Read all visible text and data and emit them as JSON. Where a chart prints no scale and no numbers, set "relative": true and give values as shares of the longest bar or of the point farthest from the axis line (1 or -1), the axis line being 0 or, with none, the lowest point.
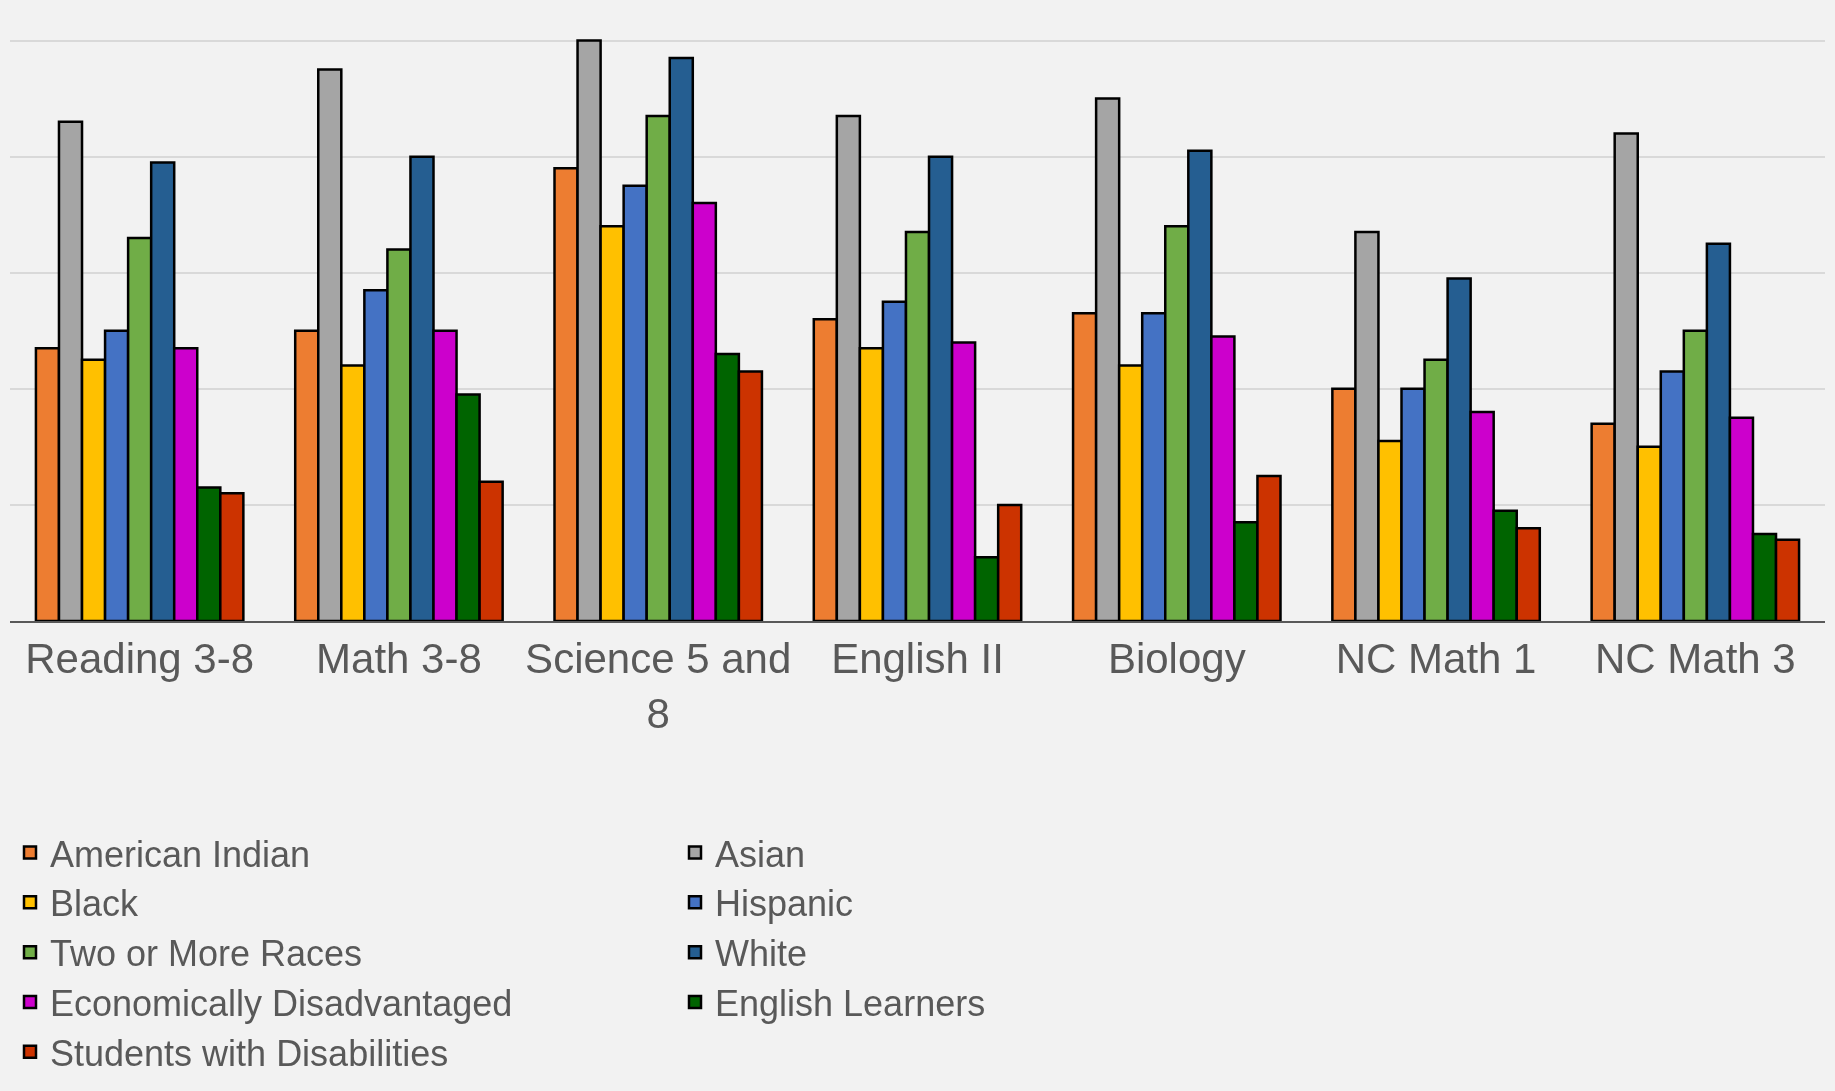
{
  "chart_data": {
    "type": "bar",
    "relative": true,
    "grid": "y",
    "legend": "bottom",
    "categories": [
      "Reading 3-8",
      "Math 3-8",
      "Science 5 and 8",
      "English II",
      "Biology",
      "NC Math 1",
      "NC Math 3"
    ],
    "series": [
      {
        "name": "American Indian",
        "color": "#ed7d31",
        "values": [
          0.47,
          0.5,
          0.78,
          0.52,
          0.53,
          0.4,
          0.34
        ]
      },
      {
        "name": "Asian",
        "color": "#a5a5a5",
        "values": [
          0.86,
          0.95,
          1.0,
          0.87,
          0.9,
          0.67,
          0.84
        ]
      },
      {
        "name": "Black",
        "color": "#ffc000",
        "values": [
          0.45,
          0.44,
          0.68,
          0.47,
          0.44,
          0.31,
          0.3
        ]
      },
      {
        "name": "Hispanic",
        "color": "#4472c4",
        "values": [
          0.5,
          0.57,
          0.75,
          0.55,
          0.53,
          0.4,
          0.43
        ]
      },
      {
        "name": "Two or More Races",
        "color": "#70ad47",
        "values": [
          0.66,
          0.64,
          0.87,
          0.67,
          0.68,
          0.45,
          0.5
        ]
      },
      {
        "name": "White",
        "color": "#255e91",
        "values": [
          0.79,
          0.8,
          0.97,
          0.8,
          0.81,
          0.59,
          0.65
        ]
      },
      {
        "name": "Economically Disadvantaged",
        "color": "#cc00cc",
        "values": [
          0.47,
          0.5,
          0.72,
          0.48,
          0.49,
          0.36,
          0.35
        ]
      },
      {
        "name": "English Learners",
        "color": "#006400",
        "values": [
          0.23,
          0.39,
          0.46,
          0.11,
          0.17,
          0.19,
          0.15
        ]
      },
      {
        "name": "Students with Disabilities",
        "color": "#cc3300",
        "values": [
          0.22,
          0.24,
          0.43,
          0.2,
          0.25,
          0.16,
          0.14
        ]
      }
    ]
  }
}
